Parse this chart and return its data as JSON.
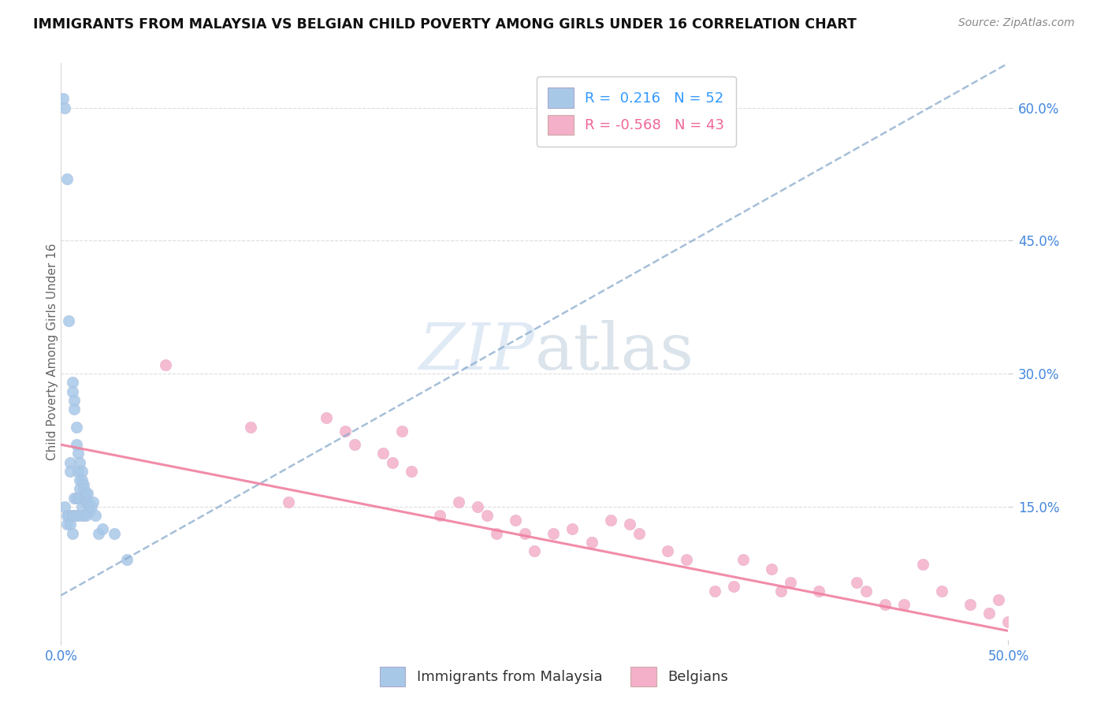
{
  "title": "IMMIGRANTS FROM MALAYSIA VS BELGIAN CHILD POVERTY AMONG GIRLS UNDER 16 CORRELATION CHART",
  "source": "Source: ZipAtlas.com",
  "ylabel": "Child Poverty Among Girls Under 16",
  "xlim": [
    0.0,
    0.5
  ],
  "ylim": [
    0.0,
    0.65
  ],
  "xticks": [
    0.0,
    0.1,
    0.2,
    0.3,
    0.4,
    0.5
  ],
  "yticks": [
    0.15,
    0.3,
    0.45,
    0.6
  ],
  "xtick_labels_left": [
    "0.0%"
  ],
  "xtick_labels_right": [
    "50.0%"
  ],
  "ytick_labels": [
    "15.0%",
    "30.0%",
    "45.0%",
    "60.0%"
  ],
  "blue_R": 0.216,
  "blue_N": 52,
  "pink_R": -0.568,
  "pink_N": 43,
  "blue_color": "#a8c8e8",
  "pink_color": "#f4b0c8",
  "blue_line_color": "#88aacc",
  "pink_line_color": "#f080a0",
  "tick_color": "#4488dd",
  "ylabel_color": "#666666",
  "watermark_color": "#ccddef",
  "grid_color": "#dddddd",
  "blue_scatter_x": [
    0.001,
    0.002,
    0.002,
    0.003,
    0.003,
    0.003,
    0.004,
    0.004,
    0.005,
    0.005,
    0.005,
    0.006,
    0.006,
    0.006,
    0.006,
    0.007,
    0.007,
    0.007,
    0.007,
    0.008,
    0.008,
    0.008,
    0.008,
    0.009,
    0.009,
    0.009,
    0.01,
    0.01,
    0.01,
    0.01,
    0.01,
    0.011,
    0.011,
    0.011,
    0.012,
    0.012,
    0.012,
    0.013,
    0.013,
    0.013,
    0.013,
    0.014,
    0.014,
    0.015,
    0.015,
    0.016,
    0.017,
    0.018,
    0.02,
    0.022,
    0.028,
    0.035
  ],
  "blue_scatter_y": [
    0.61,
    0.6,
    0.15,
    0.52,
    0.14,
    0.13,
    0.36,
    0.14,
    0.2,
    0.19,
    0.13,
    0.29,
    0.28,
    0.14,
    0.12,
    0.27,
    0.26,
    0.16,
    0.14,
    0.24,
    0.22,
    0.16,
    0.14,
    0.21,
    0.19,
    0.16,
    0.2,
    0.18,
    0.17,
    0.16,
    0.14,
    0.19,
    0.18,
    0.15,
    0.175,
    0.17,
    0.14,
    0.165,
    0.16,
    0.155,
    0.14,
    0.165,
    0.155,
    0.15,
    0.145,
    0.15,
    0.155,
    0.14,
    0.12,
    0.125,
    0.12,
    0.09
  ],
  "pink_scatter_x": [
    0.055,
    0.1,
    0.12,
    0.14,
    0.15,
    0.155,
    0.17,
    0.175,
    0.18,
    0.185,
    0.2,
    0.21,
    0.22,
    0.225,
    0.23,
    0.24,
    0.245,
    0.25,
    0.26,
    0.27,
    0.28,
    0.29,
    0.3,
    0.305,
    0.32,
    0.33,
    0.345,
    0.355,
    0.36,
    0.375,
    0.38,
    0.385,
    0.4,
    0.42,
    0.425,
    0.435,
    0.445,
    0.455,
    0.465,
    0.48,
    0.49,
    0.495,
    0.5
  ],
  "pink_scatter_y": [
    0.31,
    0.24,
    0.155,
    0.25,
    0.235,
    0.22,
    0.21,
    0.2,
    0.235,
    0.19,
    0.14,
    0.155,
    0.15,
    0.14,
    0.12,
    0.135,
    0.12,
    0.1,
    0.12,
    0.125,
    0.11,
    0.135,
    0.13,
    0.12,
    0.1,
    0.09,
    0.055,
    0.06,
    0.09,
    0.08,
    0.055,
    0.065,
    0.055,
    0.065,
    0.055,
    0.04,
    0.04,
    0.085,
    0.055,
    0.04,
    0.03,
    0.045,
    0.02
  ],
  "blue_trend_x": [
    0.0,
    0.5
  ],
  "blue_trend_y": [
    0.05,
    0.65
  ],
  "pink_trend_x": [
    0.0,
    0.5
  ],
  "pink_trend_y": [
    0.22,
    0.01
  ]
}
